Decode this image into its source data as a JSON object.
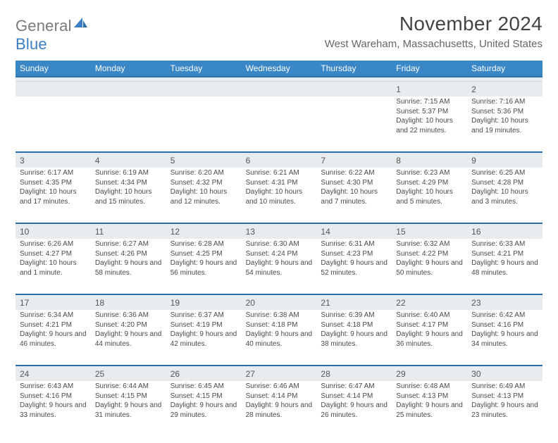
{
  "brand": {
    "part1": "General",
    "part2": "Blue"
  },
  "title": "November 2024",
  "location": "West Wareham, Massachusetts, United States",
  "colors": {
    "header_bg": "#3a87c7",
    "header_border": "#2a6fa8",
    "daynum_bg": "#e9ecef",
    "text_primary": "#4a4a4a",
    "brand_gray": "#7a7a7a",
    "brand_blue": "#3a7fc4"
  },
  "day_names": [
    "Sunday",
    "Monday",
    "Tuesday",
    "Wednesday",
    "Thursday",
    "Friday",
    "Saturday"
  ],
  "weeks": [
    [
      null,
      null,
      null,
      null,
      null,
      {
        "d": "1",
        "sunrise": "7:15 AM",
        "sunset": "5:37 PM",
        "daylight": "10 hours and 22 minutes."
      },
      {
        "d": "2",
        "sunrise": "7:16 AM",
        "sunset": "5:36 PM",
        "daylight": "10 hours and 19 minutes."
      }
    ],
    [
      {
        "d": "3",
        "sunrise": "6:17 AM",
        "sunset": "4:35 PM",
        "daylight": "10 hours and 17 minutes."
      },
      {
        "d": "4",
        "sunrise": "6:19 AM",
        "sunset": "4:34 PM",
        "daylight": "10 hours and 15 minutes."
      },
      {
        "d": "5",
        "sunrise": "6:20 AM",
        "sunset": "4:32 PM",
        "daylight": "10 hours and 12 minutes."
      },
      {
        "d": "6",
        "sunrise": "6:21 AM",
        "sunset": "4:31 PM",
        "daylight": "10 hours and 10 minutes."
      },
      {
        "d": "7",
        "sunrise": "6:22 AM",
        "sunset": "4:30 PM",
        "daylight": "10 hours and 7 minutes."
      },
      {
        "d": "8",
        "sunrise": "6:23 AM",
        "sunset": "4:29 PM",
        "daylight": "10 hours and 5 minutes."
      },
      {
        "d": "9",
        "sunrise": "6:25 AM",
        "sunset": "4:28 PM",
        "daylight": "10 hours and 3 minutes."
      }
    ],
    [
      {
        "d": "10",
        "sunrise": "6:26 AM",
        "sunset": "4:27 PM",
        "daylight": "10 hours and 1 minute."
      },
      {
        "d": "11",
        "sunrise": "6:27 AM",
        "sunset": "4:26 PM",
        "daylight": "9 hours and 58 minutes."
      },
      {
        "d": "12",
        "sunrise": "6:28 AM",
        "sunset": "4:25 PM",
        "daylight": "9 hours and 56 minutes."
      },
      {
        "d": "13",
        "sunrise": "6:30 AM",
        "sunset": "4:24 PM",
        "daylight": "9 hours and 54 minutes."
      },
      {
        "d": "14",
        "sunrise": "6:31 AM",
        "sunset": "4:23 PM",
        "daylight": "9 hours and 52 minutes."
      },
      {
        "d": "15",
        "sunrise": "6:32 AM",
        "sunset": "4:22 PM",
        "daylight": "9 hours and 50 minutes."
      },
      {
        "d": "16",
        "sunrise": "6:33 AM",
        "sunset": "4:21 PM",
        "daylight": "9 hours and 48 minutes."
      }
    ],
    [
      {
        "d": "17",
        "sunrise": "6:34 AM",
        "sunset": "4:21 PM",
        "daylight": "9 hours and 46 minutes."
      },
      {
        "d": "18",
        "sunrise": "6:36 AM",
        "sunset": "4:20 PM",
        "daylight": "9 hours and 44 minutes."
      },
      {
        "d": "19",
        "sunrise": "6:37 AM",
        "sunset": "4:19 PM",
        "daylight": "9 hours and 42 minutes."
      },
      {
        "d": "20",
        "sunrise": "6:38 AM",
        "sunset": "4:18 PM",
        "daylight": "9 hours and 40 minutes."
      },
      {
        "d": "21",
        "sunrise": "6:39 AM",
        "sunset": "4:18 PM",
        "daylight": "9 hours and 38 minutes."
      },
      {
        "d": "22",
        "sunrise": "6:40 AM",
        "sunset": "4:17 PM",
        "daylight": "9 hours and 36 minutes."
      },
      {
        "d": "23",
        "sunrise": "6:42 AM",
        "sunset": "4:16 PM",
        "daylight": "9 hours and 34 minutes."
      }
    ],
    [
      {
        "d": "24",
        "sunrise": "6:43 AM",
        "sunset": "4:16 PM",
        "daylight": "9 hours and 33 minutes."
      },
      {
        "d": "25",
        "sunrise": "6:44 AM",
        "sunset": "4:15 PM",
        "daylight": "9 hours and 31 minutes."
      },
      {
        "d": "26",
        "sunrise": "6:45 AM",
        "sunset": "4:15 PM",
        "daylight": "9 hours and 29 minutes."
      },
      {
        "d": "27",
        "sunrise": "6:46 AM",
        "sunset": "4:14 PM",
        "daylight": "9 hours and 28 minutes."
      },
      {
        "d": "28",
        "sunrise": "6:47 AM",
        "sunset": "4:14 PM",
        "daylight": "9 hours and 26 minutes."
      },
      {
        "d": "29",
        "sunrise": "6:48 AM",
        "sunset": "4:13 PM",
        "daylight": "9 hours and 25 minutes."
      },
      {
        "d": "30",
        "sunrise": "6:49 AM",
        "sunset": "4:13 PM",
        "daylight": "9 hours and 23 minutes."
      }
    ]
  ],
  "labels": {
    "sunrise": "Sunrise:",
    "sunset": "Sunset:",
    "daylight": "Daylight:"
  }
}
